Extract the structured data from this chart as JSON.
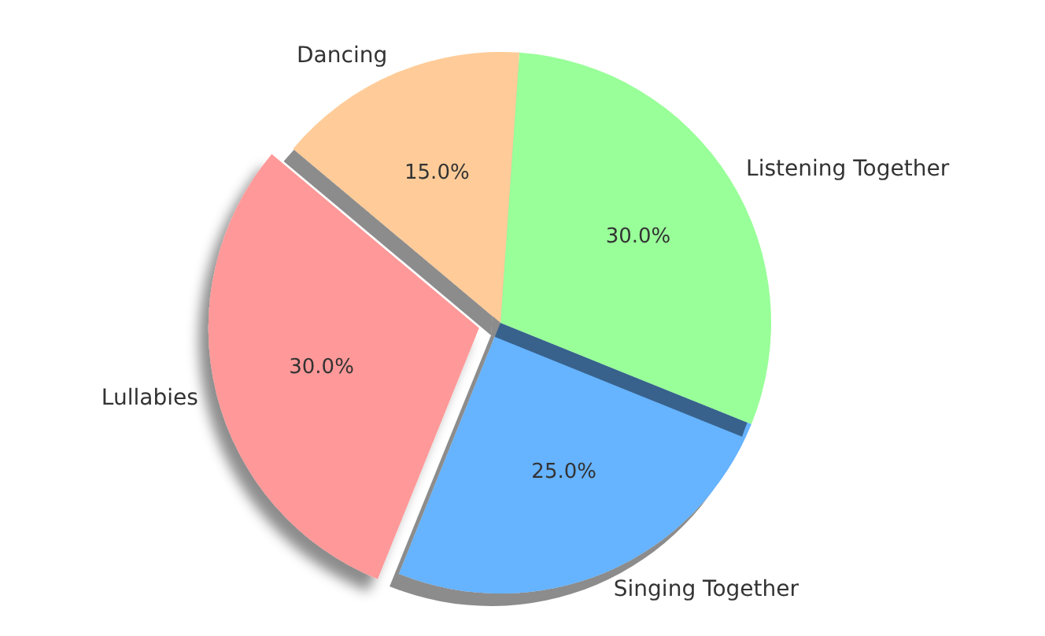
{
  "chart_data": {
    "type": "pie",
    "categories": [
      "Lullabies",
      "Singing Together",
      "Listening Together",
      "Dancing"
    ],
    "values": [
      30,
      25,
      30,
      15
    ],
    "colors": [
      "#ff9999",
      "#66b3ff",
      "#99ff99",
      "#ffcc99"
    ],
    "value_labels": [
      "30.0%",
      "25.0%",
      "30.0%",
      "15.0%"
    ],
    "legend": false
  }
}
